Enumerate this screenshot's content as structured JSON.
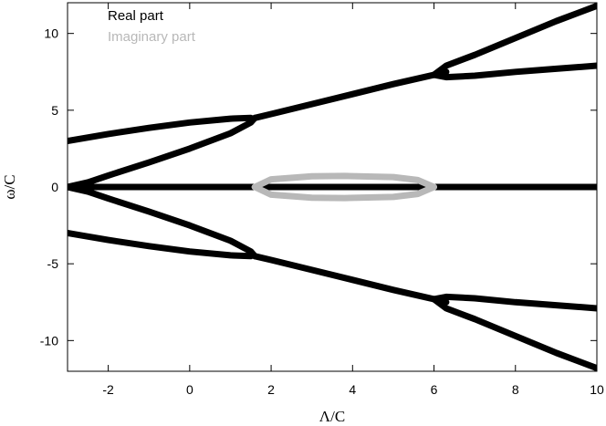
{
  "chart_data": {
    "type": "line",
    "xlabel": "Λ/C",
    "ylabel": "ω/C",
    "xlim": [
      -3,
      10
    ],
    "ylim": [
      -12,
      12
    ],
    "xticks": [
      -2,
      0,
      2,
      4,
      6,
      8,
      10
    ],
    "yticks": [
      -10,
      -5,
      0,
      5,
      10
    ],
    "grid": false,
    "legend_position": "top-left",
    "colors": {
      "real": "#000000",
      "imaginary": "#b8b8b8"
    },
    "series": [
      {
        "name": "Real part",
        "color": "#000000",
        "segments": [
          [
            [
              -3,
              3
            ],
            [
              -2,
              3.45
            ],
            [
              -1,
              3.85
            ],
            [
              0,
              4.2
            ],
            [
              1,
              4.45
            ],
            [
              1.5,
              4.5
            ]
          ],
          [
            [
              -3,
              0
            ],
            [
              -2.5,
              0.3
            ],
            [
              -2,
              0.75
            ],
            [
              -1,
              1.6
            ],
            [
              0,
              2.5
            ],
            [
              1,
              3.5
            ],
            [
              1.5,
              4.2
            ],
            [
              1.6,
              4.5
            ]
          ],
          [
            [
              1.6,
              4.5
            ],
            [
              2,
              4.75
            ],
            [
              3,
              5.4
            ],
            [
              4,
              6.05
            ],
            [
              5,
              6.7
            ],
            [
              6,
              7.3
            ],
            [
              6.3,
              7.5
            ]
          ],
          [
            [
              6.0,
              7.3
            ],
            [
              6.3,
              7.15
            ],
            [
              7,
              7.25
            ],
            [
              8,
              7.5
            ],
            [
              9,
              7.7
            ],
            [
              10,
              7.9
            ]
          ],
          [
            [
              6.0,
              7.3
            ],
            [
              6.3,
              7.9
            ],
            [
              7,
              8.6
            ],
            [
              8,
              9.7
            ],
            [
              9,
              10.8
            ],
            [
              10,
              11.8
            ]
          ],
          [
            [
              -3,
              0
            ],
            [
              10,
              0
            ]
          ],
          [
            [
              -3,
              -3
            ],
            [
              -2,
              -3.45
            ],
            [
              -1,
              -3.85
            ],
            [
              0,
              -4.2
            ],
            [
              1,
              -4.45
            ],
            [
              1.5,
              -4.5
            ]
          ],
          [
            [
              -3,
              0
            ],
            [
              -2.5,
              -0.3
            ],
            [
              -2,
              -0.75
            ],
            [
              -1,
              -1.6
            ],
            [
              0,
              -2.5
            ],
            [
              1,
              -3.5
            ],
            [
              1.5,
              -4.2
            ],
            [
              1.6,
              -4.5
            ]
          ],
          [
            [
              1.6,
              -4.5
            ],
            [
              2,
              -4.75
            ],
            [
              3,
              -5.4
            ],
            [
              4,
              -6.05
            ],
            [
              5,
              -6.7
            ],
            [
              6,
              -7.3
            ],
            [
              6.3,
              -7.5
            ]
          ],
          [
            [
              6.0,
              -7.3
            ],
            [
              6.3,
              -7.15
            ],
            [
              7,
              -7.25
            ],
            [
              8,
              -7.5
            ],
            [
              9,
              -7.7
            ],
            [
              10,
              -7.9
            ]
          ],
          [
            [
              6.0,
              -7.3
            ],
            [
              6.3,
              -7.9
            ],
            [
              7,
              -8.6
            ],
            [
              8,
              -9.7
            ],
            [
              9,
              -10.8
            ],
            [
              10,
              -11.8
            ]
          ]
        ]
      },
      {
        "name": "Imaginary part",
        "color": "#b8b8b8",
        "segments": [
          [
            [
              1.6,
              0
            ],
            [
              2,
              0.5
            ],
            [
              3,
              0.7
            ],
            [
              3.8,
              0.72
            ],
            [
              5,
              0.65
            ],
            [
              5.6,
              0.45
            ],
            [
              6.0,
              0
            ]
          ],
          [
            [
              1.6,
              0
            ],
            [
              2,
              -0.5
            ],
            [
              3,
              -0.7
            ],
            [
              3.8,
              -0.72
            ],
            [
              5,
              -0.65
            ],
            [
              5.6,
              -0.45
            ],
            [
              6.0,
              0
            ]
          ]
        ]
      }
    ]
  }
}
